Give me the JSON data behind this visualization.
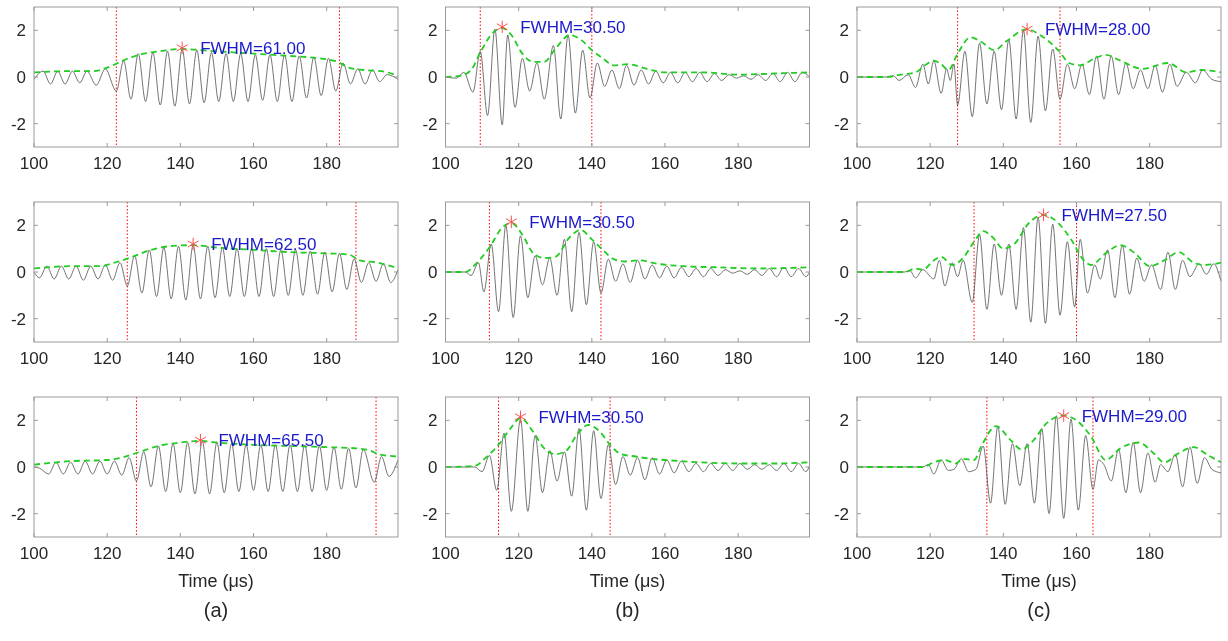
{
  "chart_data": [
    {
      "type": "line",
      "xlim": [
        100,
        199.5
      ],
      "xticks": [
        100,
        120,
        140,
        160,
        180
      ],
      "ylim": [
        -3,
        3
      ],
      "yticks": [
        -2,
        0,
        2
      ],
      "series": [
        {
          "type": "line",
          "color": "#505050",
          "x": [
            100,
            102.5,
            104.5,
            106.5,
            108.5,
            110.5,
            112.5,
            114.5,
            117,
            119.5,
            122.5,
            124.5,
            126.5,
            128.5,
            130.5,
            132.5,
            134.5,
            136.5,
            138.5,
            140.5,
            142.5,
            144.5,
            146.5,
            148.5,
            150.5,
            152.5,
            154.5,
            156.5,
            158.5,
            160.5,
            162.5,
            164.5,
            166.5,
            168.5,
            170.5,
            172.5,
            174.5,
            176.5,
            178.5,
            180.5,
            182.5,
            184.5,
            186.5,
            188.5,
            190.5,
            192.5,
            194.5,
            196.5,
            199.5
          ],
          "values": [
            -0.1,
            0.25,
            -0.3,
            0.25,
            -0.3,
            0.25,
            -0.25,
            0.25,
            -0.35,
            0.35,
            -0.6,
            0.7,
            -0.95,
            1.0,
            -1.05,
            1.05,
            -1.2,
            1.1,
            -1.25,
            1.2,
            -1.15,
            1.15,
            -1.1,
            1.05,
            -1.05,
            1.0,
            -1.05,
            1.0,
            -1.05,
            0.95,
            -1.0,
            0.95,
            -1.05,
            0.95,
            -1.05,
            0.9,
            -0.9,
            0.85,
            -0.8,
            0.8,
            -0.6,
            0.6,
            -0.3,
            0.35,
            -0.3,
            0.3,
            -0.2,
            0.1,
            -0.1
          ]
        },
        {
          "type": "line",
          "color": "#22cc22",
          "line_style": "dashed",
          "x": [
            100,
            110,
            116,
            120,
            125,
            130,
            135,
            140,
            150,
            160,
            170,
            178,
            183,
            186,
            190,
            195,
            199.5
          ],
          "values": [
            0.2,
            0.25,
            0.25,
            0.4,
            0.75,
            1.0,
            1.12,
            1.2,
            1.1,
            1.0,
            0.9,
            0.8,
            0.65,
            0.4,
            0.3,
            0.25,
            0.05
          ]
        },
        {
          "type": "scatter",
          "marker": "cross",
          "color": "#ff5050",
          "x": [
            140.5
          ],
          "values": [
            1.25
          ]
        }
      ],
      "ref_lines": [
        {
          "axis": "x",
          "value": 122.5,
          "color": "#ff0000",
          "line_style": "dotted"
        },
        {
          "axis": "x",
          "value": 183.5,
          "color": "#ff0000",
          "line_style": "dotted"
        }
      ],
      "annotations": [
        {
          "text": "FWHM=61.00",
          "x": 140.5,
          "y": 1.25
        }
      ]
    },
    {
      "type": "line",
      "xlim": [
        100,
        199.5
      ],
      "xticks": [
        100,
        120,
        140,
        160,
        180
      ],
      "ylim": [
        -3,
        3
      ],
      "yticks": [
        -2,
        0,
        2
      ],
      "series": [
        {
          "type": "line",
          "color": "#505050",
          "x": [
            100,
            103,
            105,
            107.5,
            109.5,
            111.5,
            113.5,
            115.5,
            117,
            119,
            121,
            123,
            125,
            127,
            129.5,
            131.5,
            133.5,
            135.5,
            137.5,
            139.5,
            141.5,
            143.5,
            145.5,
            147.5,
            149.5,
            151.5,
            153.5,
            155.5,
            157.5,
            159.5,
            161.5,
            163.5,
            165.5,
            167.5,
            169.5,
            171.5,
            173.5,
            175.5,
            177.5,
            179.5,
            181.5,
            183.5,
            185.5,
            187.5,
            189.5,
            191.5,
            193.5,
            195.5,
            197.5,
            199.5
          ],
          "values": [
            0,
            -0.05,
            0.2,
            -0.65,
            1.1,
            -1.65,
            2.05,
            -2.05,
            1.8,
            -1.3,
            0.8,
            -0.6,
            0.6,
            -0.95,
            1.35,
            -1.8,
            1.8,
            -1.55,
            1.15,
            -0.9,
            0.6,
            -0.4,
            0.3,
            -0.5,
            0.5,
            -0.35,
            0.3,
            -0.3,
            0.25,
            -0.25,
            0.2,
            -0.25,
            0.2,
            -0.2,
            0.2,
            -0.2,
            0.15,
            -0.15,
            0.1,
            -0.05,
            0.05,
            -0.1,
            0.1,
            -0.15,
            0.15,
            -0.2,
            0.2,
            -0.2,
            0.2,
            0
          ]
        },
        {
          "type": "line",
          "color": "#22cc22",
          "line_style": "dashed",
          "x": [
            100,
            104,
            107,
            109.5,
            113,
            115.5,
            118,
            121,
            124,
            127,
            130,
            134,
            137,
            140,
            143,
            146,
            150,
            155,
            160,
            170,
            180,
            190,
            199.5
          ],
          "values": [
            0,
            0.05,
            0.3,
            1.05,
            1.9,
            2.1,
            1.8,
            1.0,
            0.65,
            0.65,
            1.2,
            1.8,
            1.6,
            1.15,
            0.8,
            0.5,
            0.55,
            0.35,
            0.2,
            0.2,
            0.1,
            0.15,
            0.2
          ]
        },
        {
          "type": "scatter",
          "marker": "cross",
          "color": "#ff5050",
          "x": [
            115.5
          ],
          "values": [
            2.15
          ]
        }
      ],
      "ref_lines": [
        {
          "axis": "x",
          "value": 109.5,
          "color": "#ff0000",
          "line_style": "dotted"
        },
        {
          "axis": "x",
          "value": 140,
          "color": "#ff0000",
          "line_style": "dotted"
        }
      ],
      "annotations": [
        {
          "text": "FWHM=30.50",
          "x": 115.5,
          "y": 2.15
        }
      ]
    },
    {
      "type": "line",
      "xlim": [
        100,
        199.5
      ],
      "xticks": [
        100,
        120,
        140,
        160,
        180
      ],
      "ylim": [
        -3,
        3
      ],
      "yticks": [
        -2,
        0,
        2
      ],
      "series": [
        {
          "type": "line",
          "color": "#505050",
          "x": [
            100,
            108,
            110,
            111.5,
            114,
            116,
            118,
            119.5,
            121,
            123,
            124.5,
            125.5,
            126.5,
            127.5,
            129.5,
            131.5,
            133.5,
            135.5,
            137.5,
            139.5,
            141.5,
            143.5,
            145.5,
            147.5,
            149.5,
            151.5,
            153.5,
            155.5,
            157.5,
            159.5,
            161.5,
            163.5,
            165.5,
            167.5,
            169.5,
            171.5,
            173.5,
            175.5,
            177.5,
            179.5,
            181.5,
            183.5,
            185.5,
            187.5,
            190,
            192.5,
            194.5,
            197,
            199.5
          ],
          "values": [
            0,
            0,
            0.05,
            -0.15,
            0.1,
            -0.45,
            0.55,
            -0.3,
            0.7,
            -0.7,
            0.35,
            -0.15,
            0.55,
            -1.2,
            1.1,
            -1.7,
            1.45,
            -1.15,
            1.1,
            -1.4,
            1.6,
            -1.8,
            2.0,
            -1.95,
            1.75,
            -1.45,
            1.2,
            -0.95,
            0.55,
            -0.5,
            0.55,
            -0.75,
            0.9,
            -0.95,
            0.9,
            -0.75,
            0.6,
            -0.5,
            0.3,
            -0.5,
            0.5,
            -0.65,
            0.55,
            -0.4,
            0.2,
            -0.25,
            0.3,
            -0.1,
            -0.2
          ]
        },
        {
          "type": "line",
          "color": "#22cc22",
          "line_style": "dashed",
          "x": [
            100,
            108,
            112,
            116,
            119,
            121,
            123,
            125,
            127.5,
            131,
            134,
            137.5,
            141,
            146.5,
            150,
            155,
            158,
            161,
            165,
            168,
            172,
            178,
            185,
            190,
            194,
            199.5
          ],
          "values": [
            0,
            0,
            0.1,
            0.2,
            0.55,
            0.7,
            0.55,
            0.3,
            1.0,
            1.7,
            1.5,
            1.15,
            1.55,
            2.05,
            1.8,
            1.15,
            0.6,
            0.5,
            0.8,
            0.95,
            0.7,
            0.35,
            0.6,
            0.2,
            0.3,
            0.2
          ]
        },
        {
          "type": "scatter",
          "marker": "cross",
          "color": "#ff5050",
          "x": [
            146.5
          ],
          "values": [
            2.05
          ]
        }
      ],
      "ref_lines": [
        {
          "axis": "x",
          "value": 127.5,
          "color": "#ff0000",
          "line_style": "dotted"
        },
        {
          "axis": "x",
          "value": 155.5,
          "color": "#ff0000",
          "line_style": "dotted"
        }
      ],
      "annotations": [
        {
          "text": "FWHM=28.00",
          "x": 146.5,
          "y": 2.05
        }
      ]
    },
    {
      "type": "line",
      "xlim": [
        100,
        199.5
      ],
      "xticks": [
        100,
        120,
        140,
        160,
        180
      ],
      "ylim": [
        -3,
        3
      ],
      "yticks": [
        -2,
        0,
        2
      ],
      "series": [
        {
          "type": "line",
          "color": "#505050",
          "x": [
            100,
            101.5,
            103.5,
            105.5,
            107.5,
            109.5,
            111.5,
            113.5,
            115.5,
            117.5,
            119.5,
            121.5,
            123.5,
            125.5,
            127.5,
            129.5,
            131.5,
            133.5,
            135.5,
            137.5,
            139.5,
            141.5,
            143.5,
            145.5,
            147.5,
            149.5,
            151.5,
            153.5,
            155.5,
            157.5,
            159.5,
            161.5,
            163.5,
            165.5,
            167.5,
            169.5,
            171.5,
            173.5,
            175.5,
            177.5,
            179.5,
            181.5,
            183.5,
            185.5,
            187.5,
            189.5,
            191.5,
            193.5,
            195.5,
            197.5,
            199.5
          ],
          "values": [
            0,
            -0.25,
            0.25,
            -0.3,
            0.25,
            -0.3,
            0.25,
            -0.35,
            0.25,
            -0.3,
            0.3,
            -0.35,
            0.4,
            -0.6,
            0.7,
            -0.9,
            0.95,
            -1.05,
            1.05,
            -1.15,
            1.1,
            -1.2,
            1.15,
            -1.15,
            1.1,
            -1.1,
            1.05,
            -1.05,
            1.0,
            -1.05,
            1.0,
            -1.05,
            1.0,
            -1.05,
            0.95,
            -1.0,
            0.95,
            -1.0,
            0.9,
            -0.95,
            0.85,
            -0.85,
            0.8,
            -0.75,
            0.55,
            -0.45,
            0.4,
            -0.4,
            0.35,
            -0.45,
            0.1
          ]
        },
        {
          "type": "line",
          "color": "#22cc22",
          "line_style": "dashed",
          "x": [
            100,
            110,
            118,
            122,
            126,
            132,
            138,
            143.5,
            150,
            160,
            170,
            180,
            186,
            189,
            194,
            199.5
          ],
          "values": [
            0.15,
            0.25,
            0.25,
            0.4,
            0.6,
            0.95,
            1.12,
            1.15,
            1.05,
            0.95,
            0.85,
            0.8,
            0.75,
            0.5,
            0.4,
            0.15
          ]
        },
        {
          "type": "scatter",
          "marker": "cross",
          "color": "#ff5050",
          "x": [
            143.5
          ],
          "values": [
            1.2
          ]
        }
      ],
      "ref_lines": [
        {
          "axis": "x",
          "value": 125.5,
          "color": "#ff0000",
          "line_style": "dotted"
        },
        {
          "axis": "x",
          "value": 188,
          "color": "#ff0000",
          "line_style": "dotted"
        }
      ],
      "annotations": [
        {
          "text": "FWHM=62.50",
          "x": 143.5,
          "y": 1.2
        }
      ]
    },
    {
      "type": "line",
      "xlim": [
        100,
        199.5
      ],
      "xticks": [
        100,
        120,
        140,
        160,
        180
      ],
      "ylim": [
        -3,
        3
      ],
      "yticks": [
        -2,
        0,
        2
      ],
      "series": [
        {
          "type": "line",
          "color": "#505050",
          "x": [
            100,
            105.5,
            107,
            109,
            110.5,
            112.5,
            114.5,
            116.5,
            118.5,
            120.5,
            122.5,
            124.5,
            126.5,
            128.5,
            130.5,
            132.5,
            134.5,
            136.5,
            138.5,
            140.5,
            142.5,
            144.5,
            146.5,
            148.5,
            150.5,
            152.5,
            154.5,
            156.5,
            158.5,
            160.5,
            162.5,
            164.5,
            166.5,
            168.5,
            170.5,
            172.5,
            174.5,
            176.5,
            178.5,
            180.5,
            182.5,
            184.5,
            186.5,
            188.5,
            190.5,
            192.5,
            194.5,
            196.5,
            198.5,
            199.5
          ],
          "values": [
            0,
            0,
            -0.15,
            0.4,
            -0.85,
            1.2,
            -1.7,
            2.0,
            -1.95,
            1.55,
            -1.1,
            0.7,
            -0.55,
            0.6,
            -1.0,
            1.4,
            -1.7,
            1.7,
            -1.4,
            1.3,
            -0.9,
            0.55,
            -0.4,
            0.35,
            -0.45,
            0.5,
            -0.3,
            0.3,
            -0.25,
            0.25,
            -0.25,
            0.2,
            -0.2,
            0.15,
            -0.2,
            0.15,
            -0.15,
            0.1,
            -0.05,
            0.05,
            -0.1,
            0.1,
            -0.15,
            0.15,
            -0.2,
            0.2,
            -0.2,
            0.15,
            -0.2,
            0
          ]
        },
        {
          "type": "line",
          "color": "#22cc22",
          "line_style": "dashed",
          "x": [
            100,
            105.5,
            108,
            112,
            115.5,
            118,
            121,
            124,
            127,
            130,
            134,
            137,
            140,
            143,
            146,
            149,
            153,
            158,
            165,
            175,
            185,
            199.5
          ],
          "values": [
            0,
            0,
            0.3,
            1.05,
            1.9,
            2.1,
            1.6,
            0.8,
            0.6,
            0.65,
            1.5,
            1.8,
            1.4,
            0.95,
            0.55,
            0.45,
            0.5,
            0.35,
            0.25,
            0.2,
            0.15,
            0.2
          ]
        },
        {
          "type": "scatter",
          "marker": "cross",
          "color": "#ff5050",
          "x": [
            118
          ],
          "values": [
            2.15
          ]
        }
      ],
      "ref_lines": [
        {
          "axis": "x",
          "value": 112,
          "color": "#ff0000",
          "line_style": "dotted"
        },
        {
          "axis": "x",
          "value": 142.5,
          "color": "#ff0000",
          "line_style": "dotted"
        }
      ],
      "annotations": [
        {
          "text": "FWHM=30.50",
          "x": 118,
          "y": 2.15
        }
      ]
    },
    {
      "type": "line",
      "xlim": [
        100,
        199.5
      ],
      "xticks": [
        100,
        120,
        140,
        160,
        180
      ],
      "ylim": [
        -3,
        3
      ],
      "yticks": [
        -2,
        0,
        2
      ],
      "series": [
        {
          "type": "line",
          "color": "#505050",
          "x": [
            100,
            113,
            114.5,
            116,
            118,
            121,
            122.5,
            124,
            126,
            127.5,
            129,
            131.5,
            133.5,
            135.5,
            137.5,
            139.5,
            141.5,
            143.5,
            145.5,
            147.5,
            149.5,
            151.5,
            153.5,
            155.5,
            157.5,
            159.5,
            161,
            163,
            165,
            166.5,
            168.5,
            170.5,
            172.5,
            174.5,
            176.5,
            178.5,
            180.5,
            183,
            185,
            187,
            189,
            191,
            193.5,
            195.5,
            197.5,
            199.5
          ],
          "values": [
            0,
            0,
            0.05,
            -0.25,
            0.1,
            -0.3,
            0.5,
            -0.6,
            0.4,
            -0.2,
            0.5,
            -1.3,
            1.6,
            -1.6,
            1.2,
            -1.0,
            1.2,
            -1.6,
            1.9,
            -2.15,
            2.35,
            -2.2,
            2.05,
            -1.85,
            1.3,
            -1.5,
            1.4,
            -0.9,
            0.3,
            -0.3,
            0.95,
            -1.1,
            1.15,
            -0.95,
            0.6,
            -0.4,
            0.3,
            -0.75,
            0.85,
            -0.75,
            0.5,
            -0.2,
            0.35,
            -0.1,
            0.35,
            -0.4
          ]
        },
        {
          "type": "line",
          "color": "#22cc22",
          "line_style": "dashed",
          "x": [
            100,
            113,
            116,
            118,
            121,
            123,
            126,
            129,
            132,
            134.5,
            137,
            140,
            143,
            147,
            151,
            155,
            158.5,
            162,
            164,
            168,
            172,
            176,
            180,
            184,
            188,
            192,
            195,
            199.5
          ],
          "values": [
            0,
            0,
            0.15,
            0.1,
            0.5,
            0.65,
            0.3,
            0.6,
            1.3,
            1.75,
            1.5,
            1.0,
            1.2,
            2.1,
            2.45,
            2.1,
            1.4,
            0.5,
            0.3,
            0.8,
            1.15,
            0.8,
            0.25,
            0.5,
            0.85,
            0.4,
            0.3,
            0.4
          ]
        },
        {
          "type": "scatter",
          "marker": "cross",
          "color": "#ff5050",
          "x": [
            151
          ],
          "values": [
            2.45
          ]
        }
      ],
      "ref_lines": [
        {
          "axis": "x",
          "value": 132,
          "color": "#ff0000",
          "line_style": "dotted"
        },
        {
          "axis": "x",
          "value": 160,
          "color": "#ff0000",
          "line_style": "dotted"
        }
      ],
      "annotations": [
        {
          "text": "FWHM=27.50",
          "x": 151,
          "y": 2.45
        }
      ]
    },
    {
      "type": "line",
      "xlim": [
        100,
        199.5
      ],
      "xticks": [
        100,
        120,
        140,
        160,
        180
      ],
      "ylim": [
        -3,
        3
      ],
      "yticks": [
        -2,
        0,
        2
      ],
      "xlabel": "Time (μs)",
      "series": [
        {
          "type": "line",
          "color": "#505050",
          "x": [
            100,
            101.5,
            104,
            106,
            108,
            110,
            112,
            114,
            116,
            118,
            120,
            122,
            124,
            126,
            128,
            130,
            132,
            134,
            136,
            138,
            140,
            142,
            144,
            146,
            148,
            150,
            152,
            154,
            156,
            158,
            160,
            162,
            164,
            166,
            168,
            170,
            172,
            174,
            176,
            178,
            180,
            182,
            184,
            186,
            188,
            190,
            193,
            195,
            197,
            199.5
          ],
          "values": [
            0,
            -0.05,
            -0.3,
            0.2,
            -0.3,
            0.2,
            -0.3,
            0.25,
            -0.3,
            0.25,
            -0.3,
            0.25,
            -0.35,
            0.4,
            -0.6,
            0.65,
            -0.85,
            0.9,
            -1.05,
            1.0,
            -1.1,
            1.05,
            -1.15,
            1.1,
            -1.15,
            1.05,
            -1.1,
            1.0,
            -1.05,
            0.95,
            -1.0,
            0.95,
            -1.05,
            0.95,
            -1.05,
            0.95,
            -1.05,
            0.95,
            -1.05,
            0.9,
            -1.0,
            0.85,
            -0.95,
            0.8,
            -0.9,
            0.75,
            -0.65,
            0.45,
            -0.4,
            0.3
          ]
        },
        {
          "type": "line",
          "color": "#22cc22",
          "line_style": "dashed",
          "x": [
            100,
            110,
            120,
            124,
            128,
            134,
            140,
            145.5,
            150,
            160,
            170,
            180,
            188,
            192,
            194,
            199.5
          ],
          "values": [
            0.1,
            0.25,
            0.3,
            0.4,
            0.6,
            0.9,
            1.05,
            1.12,
            1.05,
            0.95,
            0.9,
            0.85,
            0.8,
            0.7,
            0.55,
            0.45
          ]
        },
        {
          "type": "scatter",
          "marker": "cross",
          "color": "#ff5050",
          "x": [
            145.5
          ],
          "values": [
            1.15
          ]
        }
      ],
      "ref_lines": [
        {
          "axis": "x",
          "value": 128,
          "color": "#ff0000",
          "line_style": "dotted"
        },
        {
          "axis": "x",
          "value": 193.5,
          "color": "#ff0000",
          "line_style": "dotted"
        }
      ],
      "annotations": [
        {
          "text": "FWHM=65.50",
          "x": 145.5,
          "y": 1.15
        },
        "(a)"
      ]
    },
    {
      "type": "line",
      "xlim": [
        100,
        199.5
      ],
      "xticks": [
        100,
        120,
        140,
        160,
        180
      ],
      "ylim": [
        -3,
        3
      ],
      "yticks": [
        -2,
        0,
        2
      ],
      "xlabel": "Time (μs)",
      "series": [
        {
          "type": "line",
          "color": "#505050",
          "x": [
            100,
            108,
            110,
            112,
            114,
            116,
            118,
            120.5,
            122.5,
            124.5,
            126.5,
            128.5,
            130.5,
            132.5,
            134.5,
            136.5,
            138.5,
            140.5,
            142.5,
            144.5,
            146.5,
            148.5,
            150.5,
            152.5,
            154.5,
            156.5,
            158.5,
            160.5,
            162.5,
            164.5,
            166.5,
            168.5,
            170.5,
            172.5,
            174.5,
            176.5,
            178.5,
            180.5,
            182.5,
            184.5,
            186.5,
            188.5,
            190.5,
            192.5,
            194.5,
            196.5,
            198.5,
            199.5
          ],
          "values": [
            0,
            0,
            -0.2,
            0.5,
            -1.0,
            1.45,
            -1.9,
            2.05,
            -1.9,
            1.35,
            -1.1,
            0.7,
            -0.6,
            0.65,
            -1.25,
            1.65,
            -1.85,
            1.55,
            -1.35,
            0.95,
            -0.75,
            0.45,
            -0.35,
            0.4,
            -0.55,
            0.4,
            -0.3,
            0.3,
            -0.25,
            0.25,
            -0.2,
            0.15,
            -0.2,
            0.15,
            -0.15,
            0.15,
            -0.15,
            0.15,
            -0.1,
            0.1,
            -0.1,
            0.1,
            -0.15,
            0.15,
            -0.2,
            0.15,
            -0.2,
            0.05
          ]
        },
        {
          "type": "line",
          "color": "#22cc22",
          "line_style": "dashed",
          "x": [
            100,
            108,
            111,
            115,
            118,
            120.5,
            124,
            127,
            130,
            133,
            136,
            139,
            142,
            145,
            148,
            152,
            156,
            160,
            170,
            180,
            190,
            199.5
          ],
          "values": [
            0,
            0.05,
            0.4,
            1.05,
            1.7,
            2.1,
            1.5,
            0.8,
            0.55,
            0.7,
            1.4,
            1.8,
            1.55,
            0.95,
            0.55,
            0.45,
            0.35,
            0.3,
            0.2,
            0.15,
            0.15,
            0.2
          ]
        },
        {
          "type": "scatter",
          "marker": "cross",
          "color": "#ff5050",
          "x": [
            120.5
          ],
          "values": [
            2.15
          ]
        }
      ],
      "ref_lines": [
        {
          "axis": "x",
          "value": 114.5,
          "color": "#ff0000",
          "line_style": "dotted"
        },
        {
          "axis": "x",
          "value": 145,
          "color": "#ff0000",
          "line_style": "dotted"
        }
      ],
      "annotations": [
        {
          "text": "FWHM=30.50",
          "x": 120.5,
          "y": 2.15
        },
        "(b)"
      ]
    },
    {
      "type": "line",
      "xlim": [
        100,
        199.5
      ],
      "xticks": [
        100,
        120,
        140,
        160,
        180
      ],
      "ylim": [
        -3,
        3
      ],
      "yticks": [
        -2,
        0,
        2
      ],
      "xlabel": "Time (μs)",
      "series": [
        {
          "type": "line",
          "color": "#505050",
          "x": [
            100,
            118,
            119.5,
            121,
            123,
            125,
            126.5,
            128.5,
            130.5,
            132.5,
            134.5,
            136.5,
            138.5,
            140.5,
            142.5,
            144.5,
            146.5,
            148.5,
            150.5,
            152.5,
            154.5,
            156.5,
            158.5,
            160.5,
            162.5,
            164.5,
            166,
            167.5,
            169.5,
            171.5,
            173.5,
            175.5,
            177.5,
            179.5,
            181.5,
            183,
            185,
            187,
            189,
            191,
            193,
            195,
            197,
            199.5
          ],
          "values": [
            0,
            0,
            0.1,
            -0.3,
            0.3,
            -0.15,
            -0.1,
            0.35,
            -0.2,
            -0.1,
            0.9,
            -1.55,
            1.75,
            -1.6,
            1.0,
            -0.8,
            1.0,
            -1.55,
            1.65,
            -2.0,
            2.2,
            -2.2,
            2.05,
            -1.85,
            1.35,
            -0.95,
            0.3,
            0.1,
            -0.6,
            0.75,
            -1.1,
            1.05,
            -1.1,
            0.6,
            -0.65,
            0.1,
            -0.2,
            0.55,
            -0.85,
            0.85,
            -0.7,
            0.4,
            -0.1,
            -0.25
          ]
        },
        {
          "type": "line",
          "color": "#22cc22",
          "line_style": "dashed",
          "x": [
            100,
            118,
            121,
            124,
            127,
            129,
            132,
            134,
            138,
            142,
            145,
            148,
            152,
            156.5,
            160,
            164,
            168,
            172,
            177,
            181,
            184,
            188,
            192,
            196,
            199.5
          ],
          "values": [
            0,
            0,
            0.2,
            0.3,
            0.15,
            0.35,
            0.3,
            0.9,
            1.75,
            1.15,
            0.75,
            1.1,
            1.9,
            2.2,
            2.0,
            1.3,
            0.3,
            0.8,
            1.05,
            0.6,
            0.2,
            0.6,
            0.85,
            0.5,
            0.2
          ]
        },
        {
          "type": "scatter",
          "marker": "cross",
          "color": "#ff5050",
          "x": [
            156.5
          ],
          "values": [
            2.2
          ]
        }
      ],
      "ref_lines": [
        {
          "axis": "x",
          "value": 135.5,
          "color": "#ff0000",
          "line_style": "dotted"
        },
        {
          "axis": "x",
          "value": 164.5,
          "color": "#ff0000",
          "line_style": "dotted"
        }
      ],
      "annotations": [
        {
          "text": "FWHM=29.00",
          "x": 156.5,
          "y": 2.2
        },
        "(c)"
      ]
    }
  ]
}
